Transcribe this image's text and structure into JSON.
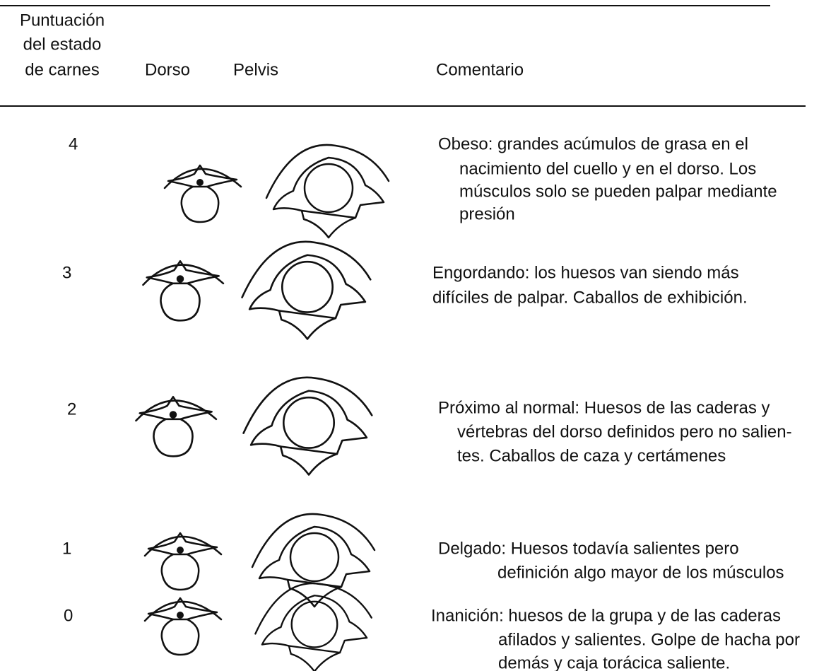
{
  "header": {
    "score_column": [
      "Puntuación",
      "del estado",
      "de carnes"
    ],
    "dorso": "Dorso",
    "pelvis": "Pelvis",
    "comment": "Comentario"
  },
  "rows": [
    {
      "score": "4",
      "comment": [
        "Obeso: grandes acúmulos de grasa en el",
        "nacimiento del cuello y en el dorso. Los",
        "músculos solo se pueden palpar mediante",
        "presión"
      ]
    },
    {
      "score": "3",
      "comment": [
        "Engordando: los huesos van siendo más",
        "difíciles de palpar. Caballos de exhibición."
      ]
    },
    {
      "score": "2",
      "comment": [
        "Próximo al normal: Huesos de las caderas y",
        "vértebras del dorso definidos pero no salien-",
        "tes. Caballos de caza y certámenes"
      ]
    },
    {
      "score": "1",
      "comment": [
        "Delgado: Huesos todavía salientes pero",
        "definición algo mayor de los músculos"
      ]
    },
    {
      "score": "0",
      "comment": [
        "Inanición: huesos de la grupa y de las caderas",
        "afilados y salientes. Golpe de hacha por",
        "demás y caja torácica saliente."
      ]
    }
  ]
}
